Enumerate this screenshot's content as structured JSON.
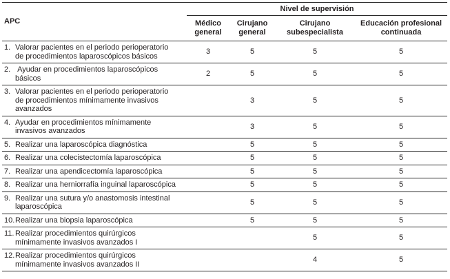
{
  "table": {
    "corner_label": "APC",
    "span_header": "Nivel de supervisión",
    "columns": [
      "Médico\ngeneral",
      "Cirujano\ngeneral",
      "Cirujano\nsubespecialista",
      "Educación profesional\ncontinuada"
    ],
    "rows": [
      {
        "num": "1.",
        "label": "Valorar pacientes en el periodo perioperatorio\nde procedimientos laparoscópicos básicos",
        "values": [
          "3",
          "5",
          "5",
          "5"
        ]
      },
      {
        "num": "2.",
        "label": " Ayudar en procedimientos laparoscópicos\nbásicos",
        "values": [
          "2",
          "5",
          "5",
          "5"
        ]
      },
      {
        "num": "3.",
        "label": "Valorar pacientes en el periodo perioperatorio\nde procedimientos mínimamente invasivos\navanzados",
        "values": [
          "",
          "3",
          "5",
          "5"
        ]
      },
      {
        "num": "4.",
        "label": "Ayudar en procedimientos mínimamente\ninvasivos avanzados",
        "values": [
          "",
          "3",
          "5",
          "5"
        ]
      },
      {
        "num": "5.",
        "label": "Realizar una laparoscópica diagnóstica",
        "values": [
          "",
          "5",
          "5",
          "5"
        ]
      },
      {
        "num": "6.",
        "label": "Realizar una colecistectomía laparoscópica",
        "values": [
          "",
          "5",
          "5",
          "5"
        ]
      },
      {
        "num": "7.",
        "label": "Realizar una apendicectomía laparoscópica",
        "values": [
          "",
          "5",
          "5",
          "5"
        ]
      },
      {
        "num": "8.",
        "label": "Realizar una herniorrafía inguinal laparoscópica",
        "values": [
          "",
          "5",
          "5",
          "5"
        ]
      },
      {
        "num": "9.",
        "label": "Realizar una sutura y/o anastomosis intestinal\nlaparoscópica",
        "values": [
          "",
          "5",
          "5",
          "5"
        ]
      },
      {
        "num": "10.",
        "label": "Realizar una biopsia laparoscópica",
        "values": [
          "",
          "5",
          "5",
          "5"
        ]
      },
      {
        "num": "11.",
        "label": "Realizar procedimientos quirúrgicos\nmínimamente invasivos avanzados I",
        "values": [
          "",
          "",
          "5",
          "5"
        ]
      },
      {
        "num": "12.",
        "label": "Realizar procedimientos quirúrgicos\nmínimamente invasivos avanzados II",
        "values": [
          "",
          "",
          "4",
          "5"
        ]
      }
    ]
  }
}
